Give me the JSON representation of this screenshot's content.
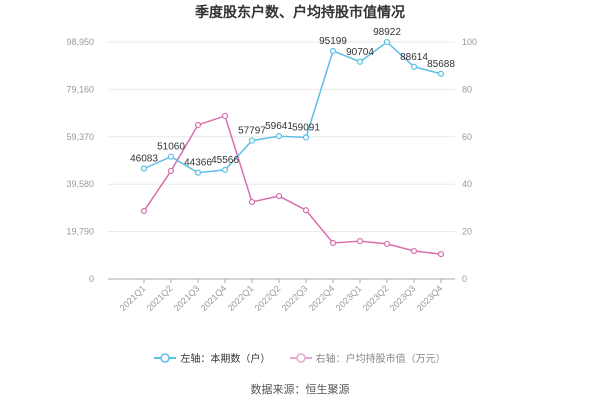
{
  "title": "季度股东户数、户均持股市值情况",
  "legend": {
    "left": "左轴：本期数（户）",
    "right": "右轴：户均持股市值（万元）"
  },
  "source": "数据来源：恒生聚源",
  "colors": {
    "left_series": "#5bbfe6",
    "right_series": "#d96fae",
    "grid": "#e8e8e8",
    "axis": "#999999"
  },
  "chart_data": {
    "type": "line",
    "title": "季度股东户数、户均持股市值情况",
    "categories": [
      "2021Q1",
      "2021Q2",
      "2021Q3",
      "2021Q4",
      "2022Q1",
      "2022Q2",
      "2022Q3",
      "2022Q4",
      "2023Q1",
      "2023Q2",
      "2023Q3",
      "2023Q4"
    ],
    "series": [
      {
        "name": "左轴：本期数（户）",
        "axis": "left",
        "values": [
          46083,
          51060,
          44366,
          45566,
          57797,
          59641,
          59091,
          95199,
          90704,
          98922,
          88614,
          85688
        ],
        "labels_shown": true
      },
      {
        "name": "右轴：户均持股市值（万元）",
        "axis": "right",
        "values": [
          28.7,
          45.6,
          65.0,
          68.8,
          32.5,
          35.0,
          29.0,
          15.2,
          16.0,
          14.8,
          11.8,
          10.5
        ],
        "labels_shown": false
      }
    ],
    "left_axis": {
      "ticks": [
        "0",
        "19,790",
        "39,580",
        "59,370",
        "79,160",
        "98,950"
      ],
      "ylim": [
        0,
        98950
      ]
    },
    "right_axis": {
      "ticks": [
        "0",
        "20",
        "40",
        "60",
        "80",
        "100"
      ],
      "ylim": [
        0,
        100
      ]
    },
    "xlabel": "",
    "ylabel": "",
    "grid": true,
    "legend_position": "bottom"
  }
}
